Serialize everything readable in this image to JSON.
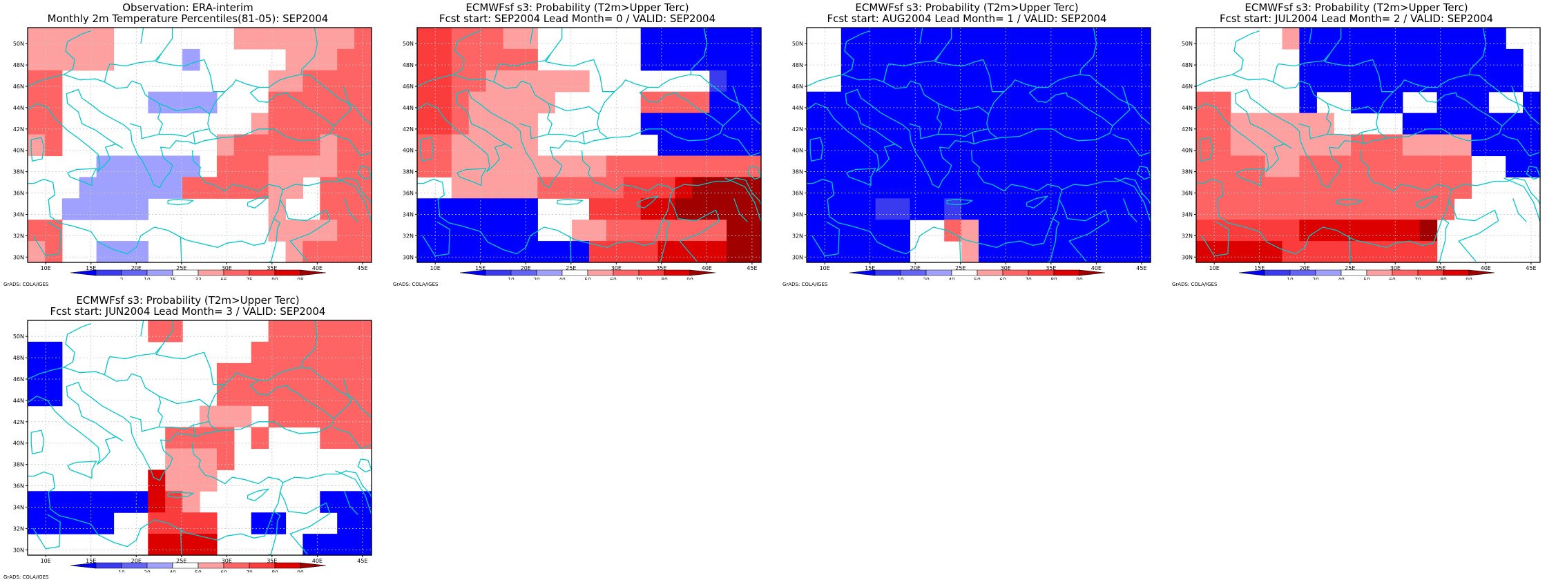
{
  "page": {
    "credit": "GrADS: COLA/IGES"
  },
  "geo": {
    "lon_ticks": [
      "10E",
      "15E",
      "20E",
      "25E",
      "30E",
      "35E",
      "40E",
      "45E"
    ],
    "lat_ticks": [
      "30N",
      "32N",
      "34N",
      "36N",
      "38N",
      "40N",
      "42N",
      "44N",
      "46N",
      "48N",
      "50N"
    ],
    "lon_range": [
      8,
      46
    ],
    "lat_range": [
      29.5,
      51.5
    ]
  },
  "colors": {
    "coast": "#00c8c8",
    "grid": "#c8c8c8",
    "classes": [
      "#0000ff",
      "#3a3aef",
      "#6464f5",
      "#a0a0ff",
      "#ffffff",
      "#ffa0a0",
      "#ff6464",
      "#fa3c3c",
      "#dc0000",
      "#a00000"
    ]
  },
  "legends": {
    "observation": [
      "2",
      "10",
      "25",
      "33",
      "66",
      "75",
      "90",
      "98"
    ],
    "probability": [
      "10",
      "20",
      "40",
      "50",
      "60",
      "70",
      "80",
      "90"
    ]
  },
  "panels": [
    {
      "line1": "Observation: ERA-interim",
      "line2": "Monthly 2m Temperature Percentiles(81-05): SEP2004",
      "legend": "observation",
      "grid": [
        "55555444444455555556",
        "55555444434444455566",
        "66444444444444556666",
        "66444443333444666666",
        "66444444444445666666",
        "56444444444566666566",
        "44443333334666555566",
        "44433333366666554666",
        "44333334444444544666",
        "66444444444444555566",
        "56443334444444456666"
      ]
    },
    {
      "line1": "ECMWFsf s3: Probability (T2m>Upper Terc)",
      "line2": "Fcst start: SEP2004   Lead Month= 0 / VALID: SEP2004",
      "legend": "probability",
      "grid": [
        "77666554444440000000",
        "77666664444440000000",
        "77665555554444444100",
        "77655555444446666000",
        "77655554444440000000",
        "66555554444444000000",
        "66555555555666666666",
        "44555556666677789999",
        "00000004447778899999",
        "00000004455666666699",
        "00000000007777888899"
      ]
    },
    {
      "line1": "ECMWFsf s3: Probability (T2m>Upper Terc)",
      "line2": "Fcst start: AUG2004   Lead Month= 1 / VALID: SEP2004",
      "legend": "probability",
      "grid": [
        "44000000000000000000",
        "44000000000000000000",
        "44000000000000000000",
        "00000000000000000000",
        "00000000000000000000",
        "00000000000000000000",
        "00000000000000000000",
        "00000000000000000000",
        "00001100100000000000",
        "00000044650000000000",
        "00000044450000000000"
      ]
    },
    {
      "line1": "ECMWFsf s3: Probability (T2m>Upper Terc)",
      "line2": "Fcst start: JUL2004   Lead Month= 2 / VALID: SEP2004",
      "legend": "probability",
      "grid": [
        "44444500000000000044",
        "44444400000000000004",
        "44444400000000000004",
        "66444404400044000440",
        "66555555444400000000",
        "66555555566655550000",
        "66665566666666664400",
        "66666666666666664444",
        "66666666666666644444",
        "77777788888889444444",
        "88888777777777444444"
      ]
    },
    {
      "line1": "ECMWFsf s3: Probability (T2m>Upper Terc)",
      "line2": "Fcst start: JUN2004   Lead Month= 3 / VALID: SEP2004",
      "legend": "probability",
      "grid": [
        "44444446644444666666",
        "00444444444446666666",
        "00444444444666666666",
        "00444444444666666666",
        "44444444445554666666",
        "44444444666646444666",
        "44444444555644444444",
        "44444448555444444444",
        "00000008754444444000",
        "00000447777440044400",
        "44444448888444440000"
      ]
    }
  ]
}
